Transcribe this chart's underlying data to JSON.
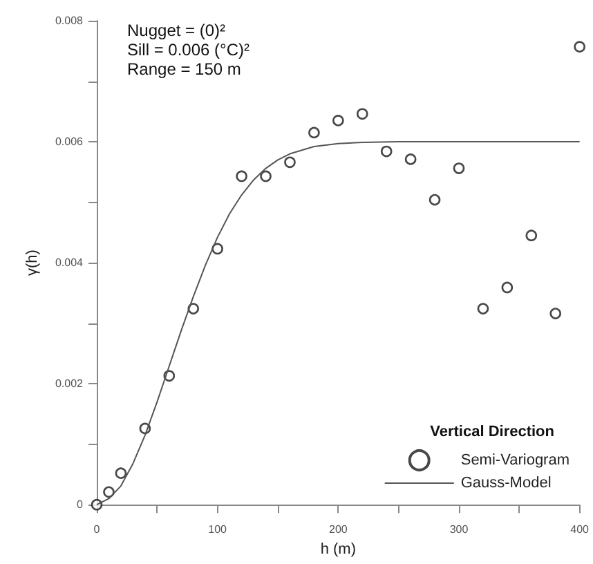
{
  "chart_data": {
    "type": "scatter",
    "xlabel": "h (m)",
    "ylabel": "γ(h)",
    "legend_title": "Vertical Direction",
    "annotations": [
      "Nugget = (0)²",
      "Sill = 0.006 (°C)²",
      "Range = 150 m"
    ],
    "xlim": [
      0,
      400
    ],
    "xticks": [
      0,
      {
        "value": 50,
        "label": null
      },
      100,
      {
        "value": 150,
        "label": null
      },
      200,
      {
        "value": 250,
        "label": null
      },
      300,
      {
        "value": 350,
        "label": null
      },
      400
    ],
    "ylim": [
      0,
      0.008
    ],
    "yticks": [
      0,
      {
        "value": 0.001,
        "label": null
      },
      0.002,
      {
        "value": 0.003,
        "label": null
      },
      0.004,
      {
        "value": 0.005,
        "label": null
      },
      0.006,
      {
        "value": 0.007,
        "label": null
      },
      0.008
    ],
    "grid": false,
    "legend": "bottom right",
    "marker": "circle",
    "series": [
      {
        "name": "Semi-Variogram",
        "color": "#1a1a1a",
        "x": [
          0,
          10,
          20,
          40,
          60,
          80,
          100,
          120,
          140,
          160,
          180,
          200,
          220,
          240,
          260,
          280,
          300,
          320,
          340,
          360,
          380,
          400
        ],
        "values": [
          0,
          0.00021,
          0.00052,
          0.00126,
          0.00213,
          0.00324,
          0.00423,
          0.00543,
          0.00543,
          0.00566,
          0.00615,
          0.00635,
          0.00646,
          0.00584,
          0.00571,
          0.00504,
          0.00556,
          0.00324,
          0.00359,
          0.00445,
          0.00316,
          0.00757
        ]
      },
      {
        "name": "Gauss-Model",
        "type": "line",
        "color": "#555555",
        "line_style": "solid",
        "marker": "none",
        "x": [
          0,
          10,
          20,
          30,
          40,
          50,
          60,
          70,
          80,
          90,
          100,
          110,
          120,
          130,
          140,
          150,
          160,
          180,
          200,
          220,
          250,
          400
        ],
        "values": [
          0,
          0.0001,
          0.00031,
          0.00068,
          0.00115,
          0.0017,
          0.00229,
          0.00288,
          0.00344,
          0.00396,
          0.00442,
          0.00481,
          0.00512,
          0.00537,
          0.00556,
          0.0057,
          0.0058,
          0.00592,
          0.00597,
          0.00599,
          0.006,
          0.006
        ]
      }
    ]
  }
}
